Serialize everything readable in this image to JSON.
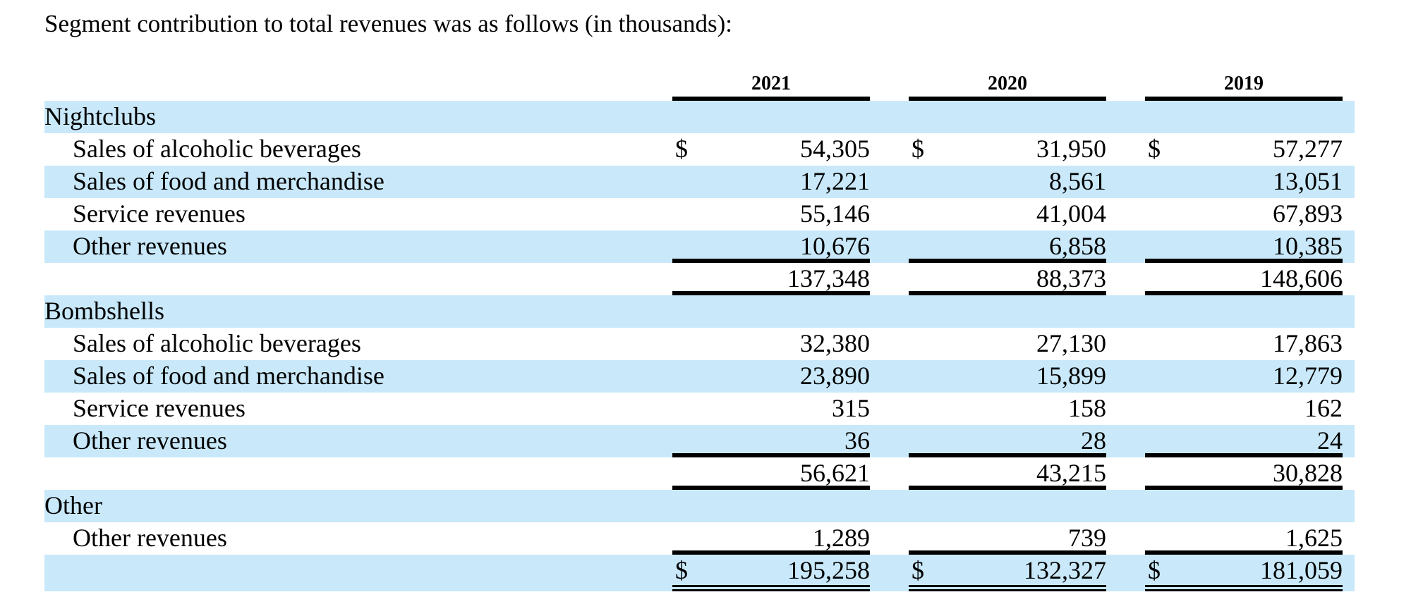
{
  "title": "Segment contribution to total revenues was as follows (in thousands):",
  "currency_symbol": "$",
  "colors": {
    "stripe": "#c9e9fa",
    "rule": "#000000",
    "background": "#ffffff"
  },
  "table": {
    "years": [
      "2021",
      "2020",
      "2019"
    ],
    "sections": [
      {
        "name": "Nightclubs",
        "rows": [
          {
            "label": "Sales of alcoholic beverages",
            "values": [
              "54,305",
              "31,950",
              "57,277"
            ]
          },
          {
            "label": "Sales of food and merchandise",
            "values": [
              "17,221",
              "8,561",
              "13,051"
            ]
          },
          {
            "label": "Service revenues",
            "values": [
              "55,146",
              "41,004",
              "67,893"
            ]
          },
          {
            "label": "Other revenues",
            "values": [
              "10,676",
              "6,858",
              "10,385"
            ]
          }
        ],
        "subtotal": [
          "137,348",
          "88,373",
          "148,606"
        ]
      },
      {
        "name": "Bombshells",
        "rows": [
          {
            "label": "Sales of alcoholic beverages",
            "values": [
              "32,380",
              "27,130",
              "17,863"
            ]
          },
          {
            "label": "Sales of food and merchandise",
            "values": [
              "23,890",
              "15,899",
              "12,779"
            ]
          },
          {
            "label": "Service revenues",
            "values": [
              "315",
              "158",
              "162"
            ]
          },
          {
            "label": "Other revenues",
            "values": [
              "36",
              "28",
              "24"
            ]
          }
        ],
        "subtotal": [
          "56,621",
          "43,215",
          "30,828"
        ]
      },
      {
        "name": "Other",
        "rows": [
          {
            "label": "Other revenues",
            "values": [
              "1,289",
              "739",
              "1,625"
            ]
          }
        ]
      }
    ],
    "total": [
      "195,258",
      "132,327",
      "181,059"
    ]
  }
}
